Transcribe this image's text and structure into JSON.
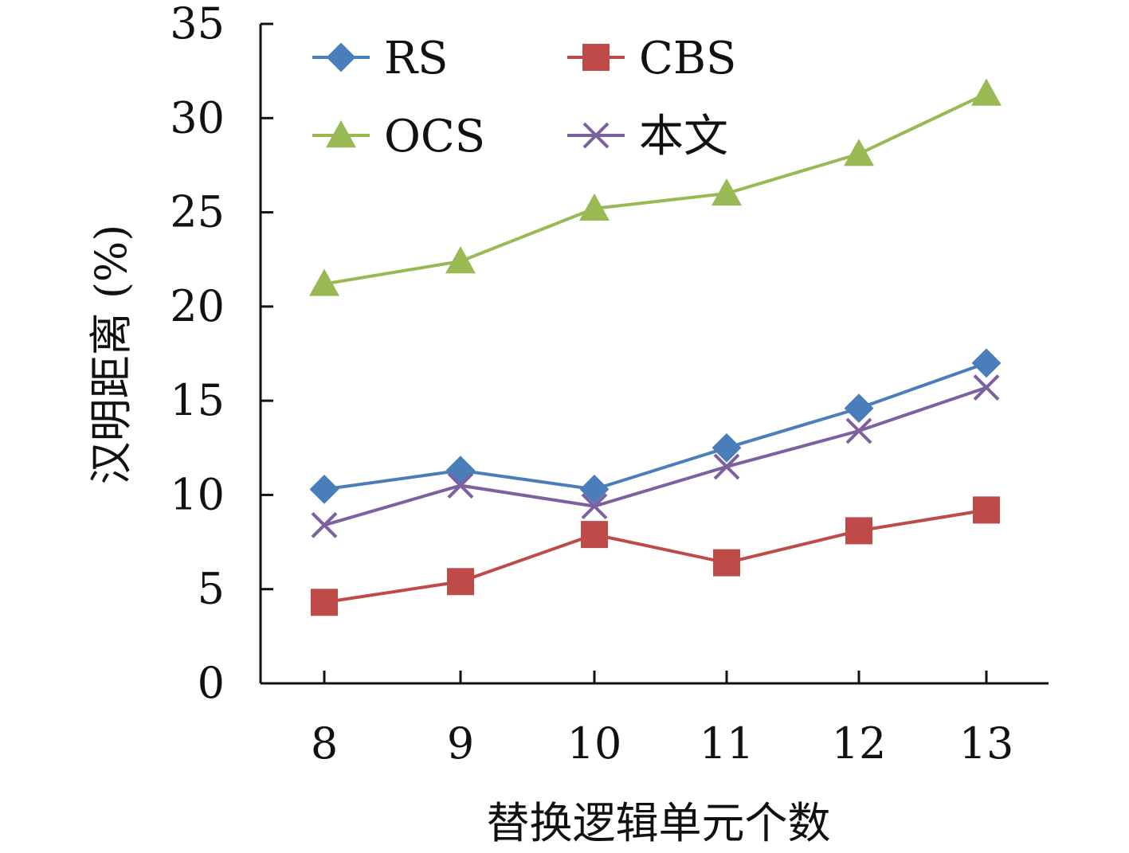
{
  "chart_data": {
    "type": "line",
    "xlabel": "替换逻辑单元个数",
    "ylabel": "汉明距离 (%)",
    "x": [
      8,
      9,
      10,
      11,
      12,
      13
    ],
    "xticks": [
      "8",
      "9",
      "10",
      "11",
      "12",
      "13"
    ],
    "ylim": [
      0,
      35
    ],
    "yticks": [
      0,
      5,
      10,
      15,
      20,
      25,
      30,
      35
    ],
    "grid": false,
    "legend_position": "top-left",
    "series": [
      {
        "name": "RS",
        "values": [
          10.3,
          11.3,
          10.3,
          12.5,
          14.6,
          17.0
        ],
        "color": "#4a7ebb",
        "marker": "diamond"
      },
      {
        "name": "CBS",
        "values": [
          4.3,
          5.4,
          7.9,
          6.4,
          8.1,
          9.2
        ],
        "color": "#be4b48",
        "marker": "square"
      },
      {
        "name": "OCS",
        "values": [
          21.2,
          22.4,
          25.2,
          26.0,
          28.1,
          31.3
        ],
        "color": "#98b954",
        "marker": "triangle"
      },
      {
        "name": "本文",
        "values": [
          8.4,
          10.5,
          9.4,
          11.5,
          13.4,
          15.7
        ],
        "color": "#7d60a0",
        "marker": "x"
      }
    ]
  }
}
